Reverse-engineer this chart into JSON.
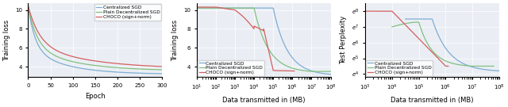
{
  "plot1": {
    "xlabel": "Epoch",
    "ylabel": "Training loss",
    "legend": [
      "Centralized SGD",
      "Plain Decentralized SGD",
      "CHOCO (sign+norm)"
    ],
    "colors": [
      "#7eadd4",
      "#82c07f",
      "#d45f5f"
    ],
    "bg_color": "#eaeef4"
  },
  "plot2": {
    "xlabel": "Data transmitted in (MB)",
    "ylabel": "Training loss",
    "legend": [
      "Centralized SGD",
      "Plain Decentralized SGD",
      "CHOCO (sign+norm)"
    ],
    "colors": [
      "#7eadd4",
      "#82c07f",
      "#d45f5f"
    ],
    "bg_color": "#eaeef4"
  },
  "plot3": {
    "xlabel": "Data transmitted in (MB)",
    "ylabel": "Test Perplexity",
    "legend": [
      "Centralized SGD",
      "Plain Decentralized SGD",
      "CHOCO (sign+norm)"
    ],
    "colors": [
      "#7eadd4",
      "#82c07f",
      "#d45f5f"
    ],
    "bg_color": "#eaeef4"
  }
}
